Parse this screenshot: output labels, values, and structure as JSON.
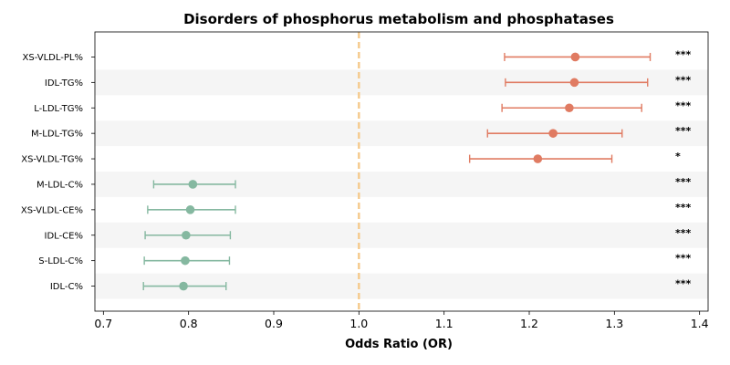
{
  "chart_data": {
    "type": "forest",
    "title": "Disorders of phosphorus metabolism and phosphatases",
    "xlabel": "Odds Ratio (OR)",
    "ylabel": "",
    "xlim": [
      0.69,
      1.41
    ],
    "xticks": [
      "0.7",
      "0.8",
      "0.9",
      "1.0",
      "1.1",
      "1.2",
      "1.3",
      "1.4"
    ],
    "reference_line": 1.0,
    "grid": false,
    "colors": {
      "positive": "#e07b62",
      "negative": "#85b8a0",
      "reference": "#f5c98a",
      "stripe": "#f5f5f5"
    },
    "rows": [
      {
        "label": "XS-VLDL-PL%",
        "or": 1.254,
        "lo": 1.171,
        "hi": 1.342,
        "sig": "***"
      },
      {
        "label": "IDL-TG%",
        "or": 1.253,
        "lo": 1.172,
        "hi": 1.339,
        "sig": "***"
      },
      {
        "label": "L-LDL-TG%",
        "or": 1.247,
        "lo": 1.168,
        "hi": 1.332,
        "sig": "***"
      },
      {
        "label": "M-LDL-TG%",
        "or": 1.228,
        "lo": 1.151,
        "hi": 1.309,
        "sig": "***"
      },
      {
        "label": "XS-VLDL-TG%",
        "or": 1.21,
        "lo": 1.13,
        "hi": 1.297,
        "sig": "*"
      },
      {
        "label": "M-LDL-C%",
        "or": 0.805,
        "lo": 0.759,
        "hi": 0.855,
        "sig": "***"
      },
      {
        "label": "XS-VLDL-CE%",
        "or": 0.802,
        "lo": 0.752,
        "hi": 0.855,
        "sig": "***"
      },
      {
        "label": "IDL-CE%",
        "or": 0.797,
        "lo": 0.749,
        "hi": 0.849,
        "sig": "***"
      },
      {
        "label": "S-LDL-C%",
        "or": 0.796,
        "lo": 0.748,
        "hi": 0.848,
        "sig": "***"
      },
      {
        "label": "IDL-C%",
        "or": 0.794,
        "lo": 0.747,
        "hi": 0.844,
        "sig": "***"
      }
    ]
  }
}
